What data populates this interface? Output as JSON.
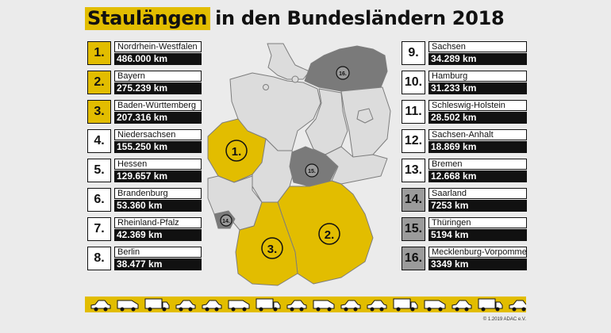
{
  "title": {
    "highlight": "Staulängen",
    "rest": "in den Bundesländern 2018"
  },
  "rankings": [
    {
      "rank": "1.",
      "state": "Nordrhein-Westfalen",
      "km": "486.000 km",
      "color": "#e2bd00"
    },
    {
      "rank": "2.",
      "state": "Bayern",
      "km": "275.239 km",
      "color": "#e2bd00"
    },
    {
      "rank": "3.",
      "state": "Baden-Württemberg",
      "km": "207.316 km",
      "color": "#e2bd00"
    },
    {
      "rank": "4.",
      "state": "Niedersachsen",
      "km": "155.250 km",
      "color": "#ffffff"
    },
    {
      "rank": "5.",
      "state": "Hessen",
      "km": "129.657 km",
      "color": "#ffffff"
    },
    {
      "rank": "6.",
      "state": "Brandenburg",
      "km": "53.360 km",
      "color": "#ffffff"
    },
    {
      "rank": "7.",
      "state": "Rheinland-Pfalz",
      "km": "42.369 km",
      "color": "#ffffff"
    },
    {
      "rank": "8.",
      "state": "Berlin",
      "km": "38.477 km",
      "color": "#ffffff"
    },
    {
      "rank": "9.",
      "state": "Sachsen",
      "km": "34.289 km",
      "color": "#ffffff"
    },
    {
      "rank": "10.",
      "state": "Hamburg",
      "km": "31.233 km",
      "color": "#ffffff"
    },
    {
      "rank": "11.",
      "state": "Schleswig-Holstein",
      "km": "28.502 km",
      "color": "#ffffff"
    },
    {
      "rank": "12.",
      "state": "Sachsen-Anhalt",
      "km": "18.869 km",
      "color": "#ffffff"
    },
    {
      "rank": "13.",
      "state": "Bremen",
      "km": "12.668 km",
      "color": "#ffffff"
    },
    {
      "rank": "14.",
      "state": "Saarland",
      "km": "7253 km",
      "color": "#9b9b9b"
    },
    {
      "rank": "15.",
      "state": "Thüringen",
      "km": "5194 km",
      "color": "#9b9b9b"
    },
    {
      "rank": "16.",
      "state": "Mecklenburg-Vorpommern",
      "km": "3349 km",
      "color": "#9b9b9b"
    }
  ],
  "map_markers": {
    "nrw": "1.",
    "bayern": "2.",
    "bw": "3.",
    "saarland": "14.",
    "thueringen": "15.",
    "mv": "16."
  },
  "colors": {
    "gold": "#e2bd00",
    "grey_region": "#7a7a7a",
    "light_region": "#dcdcdc",
    "background": "#ebebeb"
  },
  "copyright": "© 1.2019 ADAC e.V."
}
